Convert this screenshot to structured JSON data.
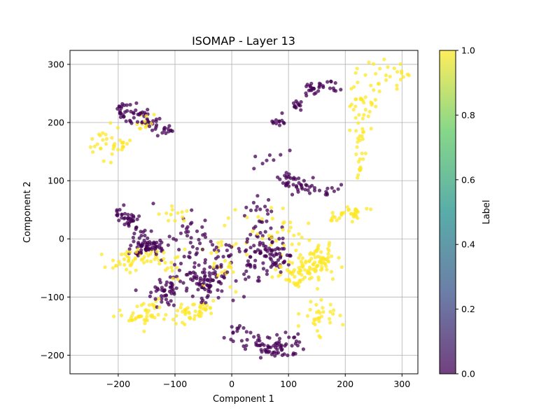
{
  "chart_data": {
    "type": "scatter",
    "title": "ISOMAP - Layer 13",
    "xlabel": "Component 1",
    "ylabel": "Component 2",
    "xlim": [
      -285,
      328
    ],
    "ylim": [
      -232,
      324
    ],
    "xticks": [
      -200,
      -100,
      0,
      100,
      200,
      300
    ],
    "yticks": [
      -200,
      -100,
      0,
      100,
      200,
      300
    ],
    "grid": true,
    "point_alpha": 0.75,
    "colorbar": {
      "label": "Label",
      "range": [
        0.0,
        1.0
      ],
      "ticks": [
        "0.0",
        "0.2",
        "0.4",
        "0.6",
        "0.8",
        "1.0"
      ],
      "colormap": "viridis",
      "stops": [
        "#440154",
        "#3b528b",
        "#21918c",
        "#5ec962",
        "#fde725"
      ]
    },
    "series": [
      {
        "label_value": 0,
        "color": "#440154",
        "clusters": [
          {
            "cx": -185,
            "cy": 220,
            "sx": 10,
            "sy": 10,
            "n": 25
          },
          {
            "cx": -160,
            "cy": 212,
            "sx": 10,
            "sy": 7,
            "n": 18
          },
          {
            "cx": -140,
            "cy": 198,
            "sx": 12,
            "sy": 8,
            "n": 18
          },
          {
            "cx": -115,
            "cy": 185,
            "sx": 8,
            "sy": 5,
            "n": 10
          },
          {
            "cx": -195,
            "cy": 43,
            "sx": 8,
            "sy": 6,
            "n": 12
          },
          {
            "cx": -180,
            "cy": 33,
            "sx": 10,
            "sy": 6,
            "n": 22
          },
          {
            "cx": -160,
            "cy": 5,
            "sx": 8,
            "sy": 8,
            "n": 15
          },
          {
            "cx": -155,
            "cy": -15,
            "sx": 15,
            "sy": 8,
            "n": 38
          },
          {
            "cx": -130,
            "cy": -13,
            "sx": 10,
            "sy": 7,
            "n": 20
          },
          {
            "cx": -120,
            "cy": -90,
            "sx": 15,
            "sy": 12,
            "n": 42
          },
          {
            "cx": -40,
            "cy": -80,
            "sx": 20,
            "sy": 15,
            "n": 65
          },
          {
            "cx": -70,
            "cy": -45,
            "sx": 25,
            "sy": 25,
            "n": 42
          },
          {
            "cx": -15,
            "cy": -30,
            "sx": 15,
            "sy": 18,
            "n": 22
          },
          {
            "cx": -80,
            "cy": 10,
            "sx": 20,
            "sy": 25,
            "n": 22
          },
          {
            "cx": 30,
            "cy": -50,
            "sx": 15,
            "sy": 20,
            "n": 20
          },
          {
            "cx": 60,
            "cy": -20,
            "sx": 18,
            "sy": 18,
            "n": 55
          },
          {
            "cx": 85,
            "cy": -35,
            "sx": 10,
            "sy": 12,
            "n": 22
          },
          {
            "cx": 55,
            "cy": 35,
            "sx": 15,
            "sy": 15,
            "n": 22
          },
          {
            "cx": 70,
            "cy": -190,
            "sx": 20,
            "sy": 8,
            "n": 32
          },
          {
            "cx": 50,
            "cy": -175,
            "sx": 20,
            "sy": 10,
            "n": 25
          },
          {
            "cx": 95,
            "cy": -175,
            "sx": 15,
            "sy": 8,
            "n": 18
          },
          {
            "cx": 10,
            "cy": -160,
            "sx": 10,
            "sy": 8,
            "n": 10
          },
          {
            "cx": 100,
            "cy": 100,
            "sx": 10,
            "sy": 8,
            "n": 22
          },
          {
            "cx": 125,
            "cy": 90,
            "sx": 12,
            "sy": 8,
            "n": 18
          },
          {
            "cx": 165,
            "cy": 85,
            "sx": 12,
            "sy": 6,
            "n": 12
          },
          {
            "cx": 85,
            "cy": 200,
            "sx": 6,
            "sy": 6,
            "n": 12
          },
          {
            "cx": 115,
            "cy": 230,
            "sx": 6,
            "sy": 6,
            "n": 12
          },
          {
            "cx": 145,
            "cy": 258,
            "sx": 10,
            "sy": 6,
            "n": 22
          },
          {
            "cx": 175,
            "cy": 262,
            "sx": 8,
            "sy": 6,
            "n": 10
          },
          {
            "cx": 70,
            "cy": 140,
            "sx": 20,
            "sy": 20,
            "n": 8
          }
        ]
      },
      {
        "label_value": 1,
        "color": "#fde725",
        "clusters": [
          {
            "cx": -230,
            "cy": 165,
            "sx": 20,
            "sy": 15,
            "n": 25
          },
          {
            "cx": -195,
            "cy": 165,
            "sx": 10,
            "sy": 8,
            "n": 10
          },
          {
            "cx": -150,
            "cy": 200,
            "sx": 12,
            "sy": 10,
            "n": 12
          },
          {
            "cx": -190,
            "cy": -40,
            "sx": 15,
            "sy": 8,
            "n": 22
          },
          {
            "cx": -150,
            "cy": -30,
            "sx": 18,
            "sy": 8,
            "n": 25
          },
          {
            "cx": -160,
            "cy": -135,
            "sx": 20,
            "sy": 8,
            "n": 35
          },
          {
            "cx": -135,
            "cy": -110,
            "sx": 10,
            "sy": 8,
            "n": 10
          },
          {
            "cx": -80,
            "cy": -130,
            "sx": 15,
            "sy": 10,
            "n": 32
          },
          {
            "cx": -50,
            "cy": -115,
            "sx": 10,
            "sy": 8,
            "n": 14
          },
          {
            "cx": -100,
            "cy": 45,
            "sx": 10,
            "sy": 10,
            "n": 12
          },
          {
            "cx": -110,
            "cy": -40,
            "sx": 10,
            "sy": 10,
            "n": 10
          },
          {
            "cx": -20,
            "cy": -50,
            "sx": 15,
            "sy": 15,
            "n": 16
          },
          {
            "cx": 40,
            "cy": 0,
            "sx": 30,
            "sy": 30,
            "n": 22
          },
          {
            "cx": 95,
            "cy": 15,
            "sx": 15,
            "sy": 15,
            "n": 14
          },
          {
            "cx": 130,
            "cy": -50,
            "sx": 20,
            "sy": 15,
            "n": 55
          },
          {
            "cx": 155,
            "cy": -35,
            "sx": 15,
            "sy": 12,
            "n": 45
          },
          {
            "cx": 110,
            "cy": -70,
            "sx": 10,
            "sy": 10,
            "n": 20
          },
          {
            "cx": 155,
            "cy": -130,
            "sx": 15,
            "sy": 15,
            "n": 32
          },
          {
            "cx": 210,
            "cy": 45,
            "sx": 12,
            "sy": 6,
            "n": 26
          },
          {
            "cx": 180,
            "cy": 35,
            "sx": 10,
            "sy": 6,
            "n": 10
          },
          {
            "cx": 225,
            "cy": 180,
            "sx": 8,
            "sy": 30,
            "n": 22
          },
          {
            "cx": 225,
            "cy": 125,
            "sx": 5,
            "sy": 15,
            "n": 10
          },
          {
            "cx": 220,
            "cy": 240,
            "sx": 10,
            "sy": 8,
            "n": 10
          },
          {
            "cx": 245,
            "cy": 225,
            "sx": 10,
            "sy": 15,
            "n": 12
          },
          {
            "cx": 260,
            "cy": 280,
            "sx": 20,
            "sy": 15,
            "n": 22
          },
          {
            "cx": 295,
            "cy": 280,
            "sx": 5,
            "sy": 6,
            "n": 6
          },
          {
            "cx": 0,
            "cy": -10,
            "sx": 80,
            "sy": 60,
            "n": 12
          }
        ]
      }
    ]
  }
}
